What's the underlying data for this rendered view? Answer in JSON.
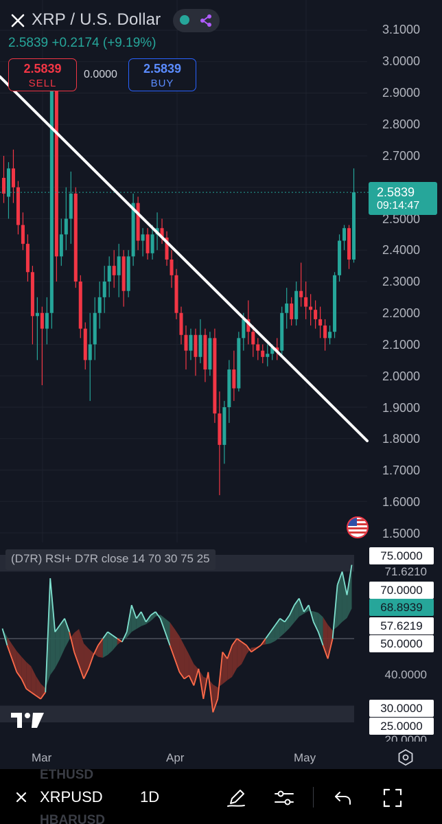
{
  "header": {
    "title": "XRP / U.S. Dollar",
    "quote": "2.5839  +0.2174 (+9.19%)"
  },
  "trade": {
    "sell_price": "2.5839",
    "sell_label": "SELL",
    "spread": "0.0000",
    "buy_price": "2.5839",
    "buy_label": "BUY"
  },
  "price_axis": [
    "3.1000",
    "3.0000",
    "2.9000",
    "2.8000",
    "2.7000",
    "2.6000",
    "2.5000",
    "2.4000",
    "2.3000",
    "2.2000",
    "2.1000",
    "2.0000",
    "1.9000",
    "1.8000",
    "1.7000",
    "1.6000",
    "1.5000"
  ],
  "current_price": {
    "value": "2.5839",
    "countdown": "09:14:47"
  },
  "indicator": {
    "label": "(D7R) RSI+ D7R close 14 70 30 75 25",
    "tags": {
      "t75": "75.0000",
      "t716": "71.6210",
      "t70": "70.0000",
      "t689": "68.8939",
      "t576": "57.6219",
      "t50": "50.0000",
      "t40": "40.0000",
      "t30": "30.0000",
      "t25": "25.0000",
      "t20": "20.0000"
    }
  },
  "time_axis": [
    "Mar",
    "Apr",
    "May"
  ],
  "bottom_bar": {
    "ghost_top": "ETHUSD",
    "ghost_bottom": "HBARUSD",
    "symbol": "XRPUSD",
    "timeframe": "1D"
  },
  "colors": {
    "up": "#26a69a",
    "down": "#f23645",
    "background": "#131722"
  },
  "icons": [
    "close-icon",
    "share-icon",
    "flag-us-icon",
    "tradingview-logo",
    "settings-icon",
    "pencil-icon",
    "sliders-icon",
    "undo-icon",
    "fullscreen-icon"
  ],
  "chart_data": [
    {
      "type": "candlestick",
      "title": "XRP / U.S. Dollar",
      "interval": "1D",
      "ylim": [
        1.5,
        3.1
      ],
      "x_ticks": [
        "Mar",
        "Apr",
        "May"
      ],
      "candles": [
        {
          "o": 2.63,
          "h": 2.7,
          "l": 2.55,
          "c": 2.58
        },
        {
          "o": 2.57,
          "h": 2.68,
          "l": 2.5,
          "c": 2.66
        },
        {
          "o": 2.66,
          "h": 2.72,
          "l": 2.55,
          "c": 2.6
        },
        {
          "o": 2.6,
          "h": 2.62,
          "l": 2.45,
          "c": 2.48
        },
        {
          "o": 2.48,
          "h": 2.52,
          "l": 2.4,
          "c": 2.42
        },
        {
          "o": 2.42,
          "h": 2.45,
          "l": 2.3,
          "c": 2.33
        },
        {
          "o": 2.33,
          "h": 2.35,
          "l": 2.1,
          "c": 2.19
        },
        {
          "o": 2.19,
          "h": 2.25,
          "l": 2.05,
          "c": 2.2
        },
        {
          "o": 2.2,
          "h": 2.22,
          "l": 1.97,
          "c": 2.15
        },
        {
          "o": 2.15,
          "h": 2.25,
          "l": 2.1,
          "c": 2.2
        },
        {
          "o": 2.2,
          "h": 2.95,
          "l": 2.15,
          "c": 2.92
        },
        {
          "o": 2.92,
          "h": 2.94,
          "l": 2.3,
          "c": 2.38
        },
        {
          "o": 2.38,
          "h": 2.5,
          "l": 2.35,
          "c": 2.45
        },
        {
          "o": 2.45,
          "h": 2.6,
          "l": 2.4,
          "c": 2.5
        },
        {
          "o": 2.5,
          "h": 2.65,
          "l": 2.42,
          "c": 2.58
        },
        {
          "o": 2.58,
          "h": 2.6,
          "l": 2.28,
          "c": 2.3
        },
        {
          "o": 2.3,
          "h": 2.32,
          "l": 2.12,
          "c": 2.15
        },
        {
          "o": 2.15,
          "h": 2.17,
          "l": 2.02,
          "c": 2.05
        },
        {
          "o": 2.05,
          "h": 2.2,
          "l": 1.92,
          "c": 2.1
        },
        {
          "o": 2.1,
          "h": 2.25,
          "l": 2.05,
          "c": 2.2
        },
        {
          "o": 2.2,
          "h": 2.3,
          "l": 2.15,
          "c": 2.25
        },
        {
          "o": 2.25,
          "h": 2.35,
          "l": 2.2,
          "c": 2.3
        },
        {
          "o": 2.3,
          "h": 2.38,
          "l": 2.25,
          "c": 2.35
        },
        {
          "o": 2.35,
          "h": 2.4,
          "l": 2.28,
          "c": 2.32
        },
        {
          "o": 2.32,
          "h": 2.42,
          "l": 2.25,
          "c": 2.38
        },
        {
          "o": 2.38,
          "h": 2.4,
          "l": 2.22,
          "c": 2.27
        },
        {
          "o": 2.27,
          "h": 2.4,
          "l": 2.25,
          "c": 2.38
        },
        {
          "o": 2.38,
          "h": 2.58,
          "l": 2.35,
          "c": 2.55
        },
        {
          "o": 2.55,
          "h": 2.57,
          "l": 2.4,
          "c": 2.43
        },
        {
          "o": 2.43,
          "h": 2.47,
          "l": 2.38,
          "c": 2.45
        },
        {
          "o": 2.45,
          "h": 2.47,
          "l": 2.37,
          "c": 2.39
        },
        {
          "o": 2.39,
          "h": 2.48,
          "l": 2.37,
          "c": 2.45
        },
        {
          "o": 2.45,
          "h": 2.52,
          "l": 2.4,
          "c": 2.47
        },
        {
          "o": 2.47,
          "h": 2.5,
          "l": 2.42,
          "c": 2.44
        },
        {
          "o": 2.44,
          "h": 2.46,
          "l": 2.35,
          "c": 2.37
        },
        {
          "o": 2.37,
          "h": 2.4,
          "l": 2.28,
          "c": 2.32
        },
        {
          "o": 2.32,
          "h": 2.34,
          "l": 2.18,
          "c": 2.2
        },
        {
          "o": 2.2,
          "h": 2.22,
          "l": 2.1,
          "c": 2.13
        },
        {
          "o": 2.13,
          "h": 2.16,
          "l": 2.02,
          "c": 2.08
        },
        {
          "o": 2.08,
          "h": 2.15,
          "l": 2.05,
          "c": 2.13
        },
        {
          "o": 2.13,
          "h": 2.15,
          "l": 2.0,
          "c": 2.06
        },
        {
          "o": 2.06,
          "h": 2.18,
          "l": 2.04,
          "c": 2.13
        },
        {
          "o": 2.13,
          "h": 2.15,
          "l": 1.98,
          "c": 2.02
        },
        {
          "o": 2.02,
          "h": 2.14,
          "l": 2.0,
          "c": 2.12
        },
        {
          "o": 2.12,
          "h": 2.15,
          "l": 1.85,
          "c": 1.88
        },
        {
          "o": 1.88,
          "h": 1.95,
          "l": 1.62,
          "c": 1.78
        },
        {
          "o": 1.78,
          "h": 1.92,
          "l": 1.72,
          "c": 1.9
        },
        {
          "o": 1.9,
          "h": 2.05,
          "l": 1.85,
          "c": 2.02
        },
        {
          "o": 2.02,
          "h": 2.08,
          "l": 1.92,
          "c": 1.96
        },
        {
          "o": 1.96,
          "h": 2.14,
          "l": 1.95,
          "c": 2.12
        },
        {
          "o": 2.12,
          "h": 2.2,
          "l": 2.08,
          "c": 2.18
        },
        {
          "o": 2.18,
          "h": 2.24,
          "l": 2.1,
          "c": 2.14
        },
        {
          "o": 2.14,
          "h": 2.16,
          "l": 2.06,
          "c": 2.1
        },
        {
          "o": 2.1,
          "h": 2.12,
          "l": 2.05,
          "c": 2.08
        },
        {
          "o": 2.08,
          "h": 2.1,
          "l": 2.04,
          "c": 2.06
        },
        {
          "o": 2.06,
          "h": 2.1,
          "l": 2.03,
          "c": 2.07
        },
        {
          "o": 2.07,
          "h": 2.1,
          "l": 2.05,
          "c": 2.09
        },
        {
          "o": 2.09,
          "h": 2.12,
          "l": 2.05,
          "c": 2.08
        },
        {
          "o": 2.08,
          "h": 2.22,
          "l": 2.06,
          "c": 2.2
        },
        {
          "o": 2.2,
          "h": 2.28,
          "l": 2.15,
          "c": 2.23
        },
        {
          "o": 2.23,
          "h": 2.25,
          "l": 2.16,
          "c": 2.18
        },
        {
          "o": 2.18,
          "h": 2.3,
          "l": 2.16,
          "c": 2.27
        },
        {
          "o": 2.27,
          "h": 2.36,
          "l": 2.22,
          "c": 2.25
        },
        {
          "o": 2.25,
          "h": 2.3,
          "l": 2.18,
          "c": 2.22
        },
        {
          "o": 2.22,
          "h": 2.26,
          "l": 2.16,
          "c": 2.21
        },
        {
          "o": 2.21,
          "h": 2.24,
          "l": 2.15,
          "c": 2.18
        },
        {
          "o": 2.18,
          "h": 2.22,
          "l": 2.12,
          "c": 2.16
        },
        {
          "o": 2.16,
          "h": 2.18,
          "l": 2.08,
          "c": 2.12
        },
        {
          "o": 2.12,
          "h": 2.16,
          "l": 2.1,
          "c": 2.14
        },
        {
          "o": 2.14,
          "h": 2.33,
          "l": 2.12,
          "c": 2.32
        },
        {
          "o": 2.32,
          "h": 2.45,
          "l": 2.3,
          "c": 2.43
        },
        {
          "o": 2.43,
          "h": 2.48,
          "l": 2.4,
          "c": 2.47
        },
        {
          "o": 2.47,
          "h": 2.48,
          "l": 2.34,
          "c": 2.37
        },
        {
          "o": 2.37,
          "h": 2.66,
          "l": 2.36,
          "c": 2.5839
        }
      ],
      "trendline": {
        "from": {
          "index": 0,
          "price": 2.94
        },
        "to": {
          "index": 74,
          "price": 1.82
        }
      }
    },
    {
      "type": "line",
      "title": "(D7R) RSI+ D7R close 14 70 30 75 25",
      "ylim": [
        20,
        80
      ],
      "levels": {
        "upper_band": [
          70,
          75
        ],
        "lower_band": [
          25,
          30
        ],
        "mid": 50
      },
      "series": [
        {
          "values": [
            53,
            48,
            44,
            40,
            38,
            35,
            34,
            33,
            32,
            34,
            68,
            52,
            54,
            56,
            52,
            46,
            42,
            38,
            41,
            45,
            48,
            50,
            52,
            51,
            50,
            49,
            52,
            60,
            56,
            58,
            55,
            57,
            58,
            56,
            52,
            48,
            44,
            40,
            38,
            39,
            36,
            41,
            32,
            40,
            28,
            32,
            46,
            44,
            48,
            50,
            49,
            48,
            46,
            47,
            48,
            50,
            52,
            54,
            56,
            55,
            57,
            60,
            62,
            58,
            60,
            55,
            52,
            48,
            44,
            50,
            66,
            70,
            63,
            72
          ]
        }
      ]
    }
  ]
}
